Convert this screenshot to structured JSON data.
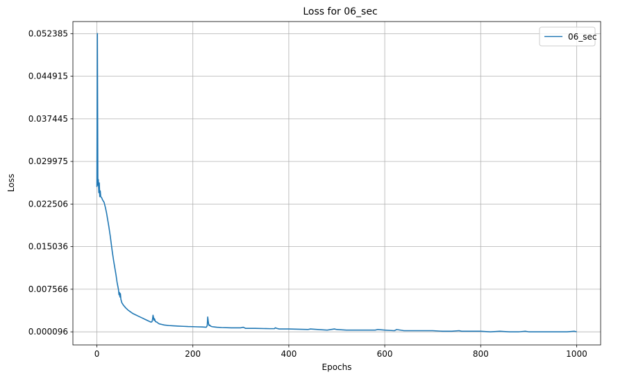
{
  "chart_data": {
    "type": "line",
    "title": "Loss for 06_sec",
    "xlabel": "Epochs",
    "ylabel": "Loss",
    "xlim": [
      -50,
      1050
    ],
    "ylim": [
      -0.0022,
      0.0545
    ],
    "xticks": [
      0,
      200,
      400,
      600,
      800,
      1000
    ],
    "yticks": [
      9.6e-05,
      0.007566,
      0.015036,
      0.022506,
      0.029975,
      0.037445,
      0.044915,
      0.052385
    ],
    "ytick_labels": [
      "0.000096",
      "0.007566",
      "0.015036",
      "0.022506",
      "0.029975",
      "0.037445",
      "0.044915",
      "0.052385"
    ],
    "grid": true,
    "legend_position": "top-right",
    "line_color": "#1f77b4",
    "series": [
      {
        "name": "06_sec",
        "x": [
          0,
          1,
          2,
          3,
          4,
          5,
          6,
          7,
          8,
          10,
          12,
          15,
          18,
          20,
          22,
          25,
          28,
          30,
          32,
          35,
          38,
          40,
          42,
          45,
          46,
          47,
          48,
          49,
          50,
          52,
          55,
          58,
          60,
          65,
          70,
          75,
          80,
          85,
          90,
          95,
          100,
          105,
          110,
          113,
          115,
          116,
          117,
          118,
          119,
          120,
          122,
          125,
          128,
          130,
          135,
          140,
          150,
          160,
          170,
          180,
          190,
          200,
          210,
          220,
          228,
          230,
          231,
          232,
          233,
          234,
          235,
          237,
          240,
          245,
          250,
          260,
          280,
          300,
          305,
          310,
          330,
          360,
          370,
          372,
          375,
          380,
          400,
          420,
          440,
          445,
          460,
          480,
          495,
          500,
          520,
          540,
          560,
          580,
          585,
          600,
          620,
          625,
          640,
          660,
          680,
          700,
          720,
          740,
          755,
          760,
          780,
          800,
          820,
          840,
          860,
          880,
          893,
          900,
          920,
          940,
          960,
          980,
          995,
          1000
        ],
        "values": [
          0.0255,
          0.0524,
          0.0258,
          0.0268,
          0.0245,
          0.0262,
          0.0238,
          0.0248,
          0.0238,
          0.0236,
          0.0232,
          0.0228,
          0.0218,
          0.021,
          0.02,
          0.0185,
          0.0168,
          0.0155,
          0.0142,
          0.0125,
          0.011,
          0.01,
          0.0088,
          0.0075,
          0.0066,
          0.007,
          0.0062,
          0.0068,
          0.0058,
          0.0052,
          0.0048,
          0.0045,
          0.0043,
          0.0039,
          0.0036,
          0.0033,
          0.0031,
          0.0029,
          0.0027,
          0.0025,
          0.0023,
          0.0021,
          0.0019,
          0.0018,
          0.0019,
          0.0023,
          0.003,
          0.0026,
          0.0021,
          0.0024,
          0.0019,
          0.0018,
          0.0016,
          0.0015,
          0.0014,
          0.0013,
          0.0012,
          0.00115,
          0.0011,
          0.00106,
          0.00102,
          0.001,
          0.00097,
          0.00095,
          0.0009,
          0.0012,
          0.0027,
          0.002,
          0.0014,
          0.0012,
          0.0013,
          0.0011,
          0.001,
          0.00095,
          0.0009,
          0.00085,
          0.0008,
          0.0008,
          0.0009,
          0.0007,
          0.0007,
          0.00065,
          0.00065,
          0.0008,
          0.0007,
          0.0006,
          0.0006,
          0.00055,
          0.0005,
          0.0006,
          0.0005,
          0.0004,
          0.0006,
          0.0005,
          0.0004,
          0.0004,
          0.0004,
          0.0004,
          0.0005,
          0.0004,
          0.0003,
          0.0005,
          0.0003,
          0.0003,
          0.0003,
          0.0003,
          0.0002,
          0.0002,
          0.0003,
          0.0002,
          0.0002,
          0.0002,
          0.0001,
          0.0002,
          0.0001,
          0.0001,
          0.0002,
          0.0001,
          0.0001,
          0.0001,
          0.0001,
          0.0001,
          0.0002,
          0.0001
        ]
      }
    ]
  }
}
